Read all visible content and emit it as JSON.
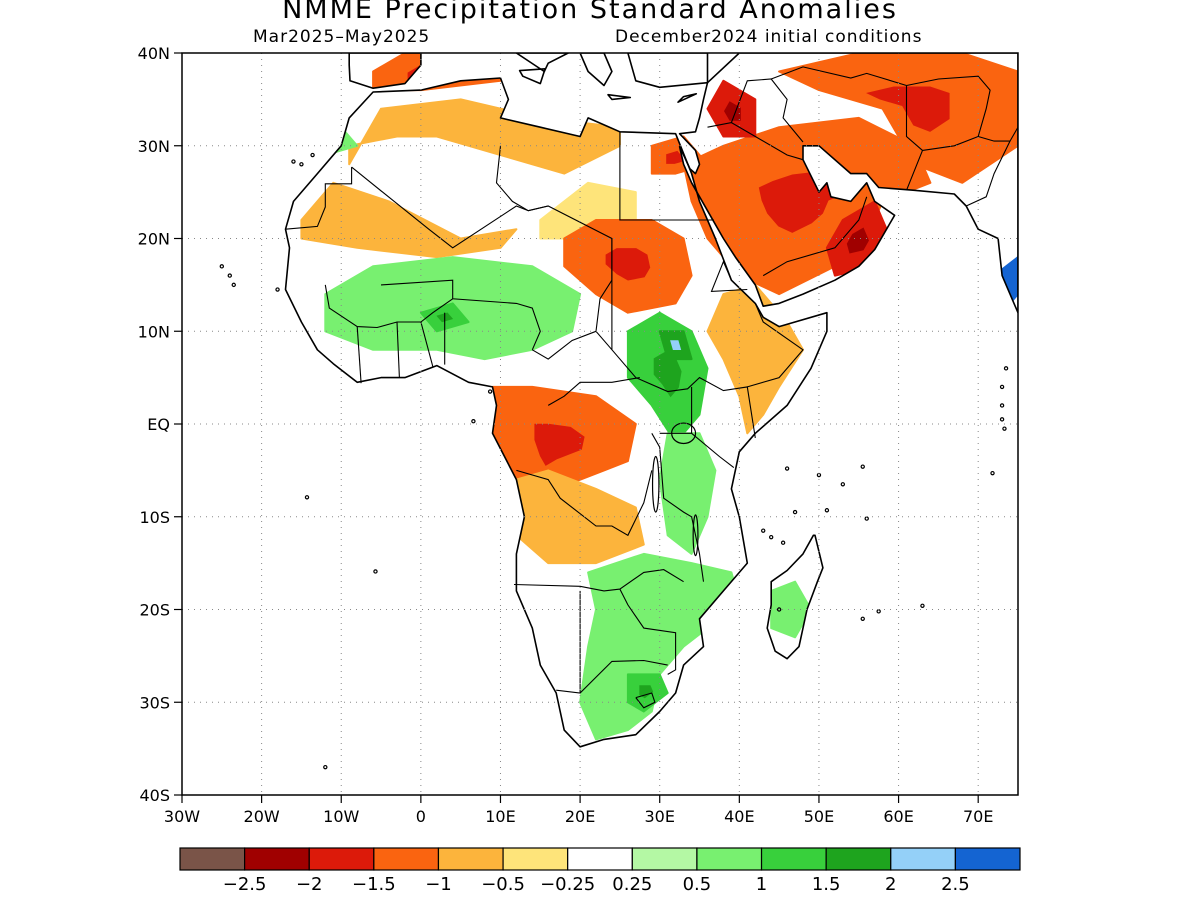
{
  "title": "NMME Precipitation Standard Anomalies",
  "subtitle_left": "Mar2025–May2025",
  "subtitle_right": "December2024 initial conditions",
  "map": {
    "lon_range": [
      -30,
      75
    ],
    "lat_range": [
      -40,
      40
    ],
    "y_ticks": [
      {
        "lat": 40,
        "label": "40N"
      },
      {
        "lat": 30,
        "label": "30N"
      },
      {
        "lat": 20,
        "label": "20N"
      },
      {
        "lat": 10,
        "label": "10N"
      },
      {
        "lat": 0,
        "label": "EQ"
      },
      {
        "lat": -10,
        "label": "10S"
      },
      {
        "lat": -20,
        "label": "20S"
      },
      {
        "lat": -30,
        "label": "30S"
      },
      {
        "lat": -40,
        "label": "40S"
      }
    ],
    "x_ticks": [
      {
        "lon": -30,
        "label": "30W"
      },
      {
        "lon": -20,
        "label": "20W"
      },
      {
        "lon": -10,
        "label": "10W"
      },
      {
        "lon": 0,
        "label": "0"
      },
      {
        "lon": 10,
        "label": "10E"
      },
      {
        "lon": 20,
        "label": "20E"
      },
      {
        "lon": 30,
        "label": "30E"
      },
      {
        "lon": 40,
        "label": "40E"
      },
      {
        "lon": 50,
        "label": "50E"
      },
      {
        "lon": 60,
        "label": "60E"
      },
      {
        "lon": 70,
        "label": "70E"
      }
    ],
    "grid": true
  },
  "colorbar": {
    "colors": [
      "#7a5448",
      "#a00000",
      "#dc1a0a",
      "#fa6410",
      "#fcb43c",
      "#fee47a",
      "#ffffff",
      "#b4f8a4",
      "#78f070",
      "#38d03c",
      "#1ea41e",
      "#94d0f8",
      "#1464d2"
    ],
    "labels": [
      "−2.5",
      "−2",
      "−1.5",
      "−1",
      "−0.5",
      "−0.25",
      "0.25",
      "0.5",
      "1",
      "1.5",
      "2",
      "2.5"
    ]
  },
  "chart_data": {
    "type": "heatmap",
    "title": "NMME Precipitation Standard Anomalies",
    "variable": "precipitation standard anomaly",
    "levels": [
      -2.5,
      -2,
      -1.5,
      -1,
      -0.5,
      -0.25,
      0.25,
      0.5,
      1,
      1.5,
      2,
      2.5
    ],
    "xlim": [
      -30,
      75
    ],
    "ylim": [
      -40,
      40
    ],
    "regions": [
      {
        "lons": [
          [
            -9,
            28
          ],
          [
            -5,
            34
          ],
          [
            5,
            35
          ],
          [
            15,
            33
          ],
          [
            25,
            32
          ],
          [
            25,
            30
          ],
          [
            18,
            27
          ],
          [
            10,
            29
          ],
          [
            2,
            31
          ],
          [
            -3,
            31
          ],
          [
            -9,
            30
          ]
        ],
        "value": -0.75
      },
      {
        "lons": [
          [
            -6,
            38
          ],
          [
            -2,
            40
          ],
          [
            8,
            40
          ],
          [
            10,
            37
          ],
          [
            0,
            36
          ],
          [
            -6,
            36
          ]
        ],
        "value": -1.2
      },
      {
        "lons": [
          [
            -15,
            22
          ],
          [
            -11,
            26
          ],
          [
            -4,
            24
          ],
          [
            5,
            20
          ],
          [
            12,
            21
          ],
          [
            10,
            19
          ],
          [
            2,
            18
          ],
          [
            -8,
            19
          ],
          [
            -15,
            20
          ]
        ],
        "value": -0.7
      },
      {
        "lons": [
          [
            15,
            22
          ],
          [
            21,
            26
          ],
          [
            27,
            25
          ],
          [
            27,
            22
          ],
          [
            22,
            20
          ],
          [
            15,
            20
          ]
        ],
        "value": -0.4
      },
      {
        "lons": [
          [
            18,
            20
          ],
          [
            22,
            22
          ],
          [
            29,
            22
          ],
          [
            33,
            20
          ],
          [
            34,
            16
          ],
          [
            32,
            13
          ],
          [
            26,
            12
          ],
          [
            22,
            14
          ],
          [
            18,
            17
          ]
        ],
        "value": -1.1
      },
      {
        "lons": [
          [
            29,
            30
          ],
          [
            33,
            31
          ],
          [
            36,
            28
          ],
          [
            32,
            27
          ],
          [
            29,
            27
          ]
        ],
        "value": -1.3
      },
      {
        "lons": [
          [
            33,
            28
          ],
          [
            38,
            30
          ],
          [
            45,
            32
          ],
          [
            55,
            33
          ],
          [
            62,
            30
          ],
          [
            64,
            26
          ],
          [
            58,
            24
          ],
          [
            56,
            20
          ],
          [
            52,
            17
          ],
          [
            45,
            14
          ],
          [
            40,
            16
          ],
          [
            36,
            20
          ],
          [
            34,
            24
          ]
        ],
        "value": -1.2
      },
      {
        "lons": [
          [
            45,
            38
          ],
          [
            55,
            40
          ],
          [
            68,
            40
          ],
          [
            75,
            38
          ],
          [
            75,
            30
          ],
          [
            68,
            26
          ],
          [
            62,
            28
          ],
          [
            58,
            34
          ],
          [
            50,
            36
          ]
        ],
        "value": -1.1
      },
      {
        "lons": [
          [
            53,
            22
          ],
          [
            57,
            24
          ],
          [
            59,
            20
          ],
          [
            57,
            17
          ],
          [
            52,
            16
          ],
          [
            51,
            19
          ]
        ],
        "value": -1.7
      },
      {
        "lons": [
          [
            36,
            34
          ],
          [
            38,
            37
          ],
          [
            42,
            35
          ],
          [
            42,
            31
          ],
          [
            38,
            31
          ]
        ],
        "value": -1.7
      },
      {
        "lons": [
          [
            38,
            14
          ],
          [
            42,
            15
          ],
          [
            46,
            11
          ],
          [
            48,
            8
          ],
          [
            45,
            4
          ],
          [
            43,
            1
          ],
          [
            41,
            -1
          ],
          [
            40,
            3
          ],
          [
            38,
            7
          ],
          [
            36,
            10
          ]
        ],
        "value": -0.7
      },
      {
        "lons": [
          [
            9,
            4
          ],
          [
            14,
            4
          ],
          [
            22,
            3
          ],
          [
            27,
            0
          ],
          [
            26,
            -4
          ],
          [
            23,
            -5
          ],
          [
            17,
            -7
          ],
          [
            13,
            -9
          ],
          [
            11,
            -6
          ],
          [
            9,
            -1
          ]
        ],
        "value": -1.1
      },
      {
        "lons": [
          [
            12,
            -6
          ],
          [
            16,
            -5
          ],
          [
            22,
            -7
          ],
          [
            27,
            -9
          ],
          [
            28,
            -13
          ],
          [
            22,
            -15
          ],
          [
            16,
            -15
          ],
          [
            12,
            -12
          ]
        ],
        "value": -0.7
      },
      {
        "lons": [
          [
            -12,
            14
          ],
          [
            -6,
            17
          ],
          [
            4,
            18
          ],
          [
            14,
            17
          ],
          [
            20,
            14
          ],
          [
            19,
            10
          ],
          [
            14,
            8
          ],
          [
            8,
            7
          ],
          [
            2,
            8
          ],
          [
            -6,
            8
          ],
          [
            -12,
            10
          ]
        ],
        "value": 0.7
      },
      {
        "lons": [
          [
            26,
            10
          ],
          [
            30,
            12
          ],
          [
            34,
            10
          ],
          [
            36,
            6
          ],
          [
            35,
            1
          ],
          [
            32,
            -2
          ],
          [
            29,
            2
          ],
          [
            26,
            5
          ]
        ],
        "value": 1.1
      },
      {
        "lons": [
          [
            31,
            -1
          ],
          [
            35,
            -1
          ],
          [
            37,
            -5
          ],
          [
            36,
            -10
          ],
          [
            34,
            -14
          ],
          [
            31,
            -12
          ],
          [
            30,
            -6
          ]
        ],
        "value": 0.8
      },
      {
        "lons": [
          [
            21,
            -16
          ],
          [
            28,
            -14
          ],
          [
            34,
            -15
          ],
          [
            39,
            -16
          ],
          [
            40,
            -19
          ],
          [
            36,
            -22
          ],
          [
            33,
            -24
          ],
          [
            30,
            -27
          ],
          [
            29,
            -31
          ],
          [
            26,
            -33
          ],
          [
            22,
            -34
          ],
          [
            20,
            -30
          ],
          [
            21,
            -24
          ],
          [
            22,
            -20
          ]
        ],
        "value": 0.8
      },
      {
        "lons": [
          [
            26,
            -27
          ],
          [
            30,
            -27
          ],
          [
            31,
            -29
          ],
          [
            28,
            -31
          ],
          [
            26,
            -30
          ]
        ],
        "value": 1.4
      },
      {
        "lons": [
          [
            44,
            -18
          ],
          [
            47,
            -17
          ],
          [
            49,
            -20
          ],
          [
            47,
            -23
          ],
          [
            44,
            -22
          ]
        ],
        "value": 0.9
      },
      {
        "lons": [
          [
            -14,
            30
          ],
          [
            -10,
            32
          ],
          [
            -8,
            30
          ],
          [
            -12,
            29
          ]
        ],
        "value": 0.5
      },
      {
        "lons": [
          [
            73,
            12
          ],
          [
            75,
            14
          ],
          [
            75,
            18
          ],
          [
            72,
            16
          ]
        ],
        "value": 2.5
      },
      {
        "lons": [
          [
            0,
            12
          ],
          [
            4,
            13
          ],
          [
            6,
            11
          ],
          [
            2,
            10
          ]
        ],
        "value": 1.3
      },
      {
        "lons": [
          [
            30,
            10
          ],
          [
            33,
            10
          ],
          [
            34,
            7
          ],
          [
            31,
            7
          ]
        ],
        "value": 1.6
      }
    ]
  }
}
